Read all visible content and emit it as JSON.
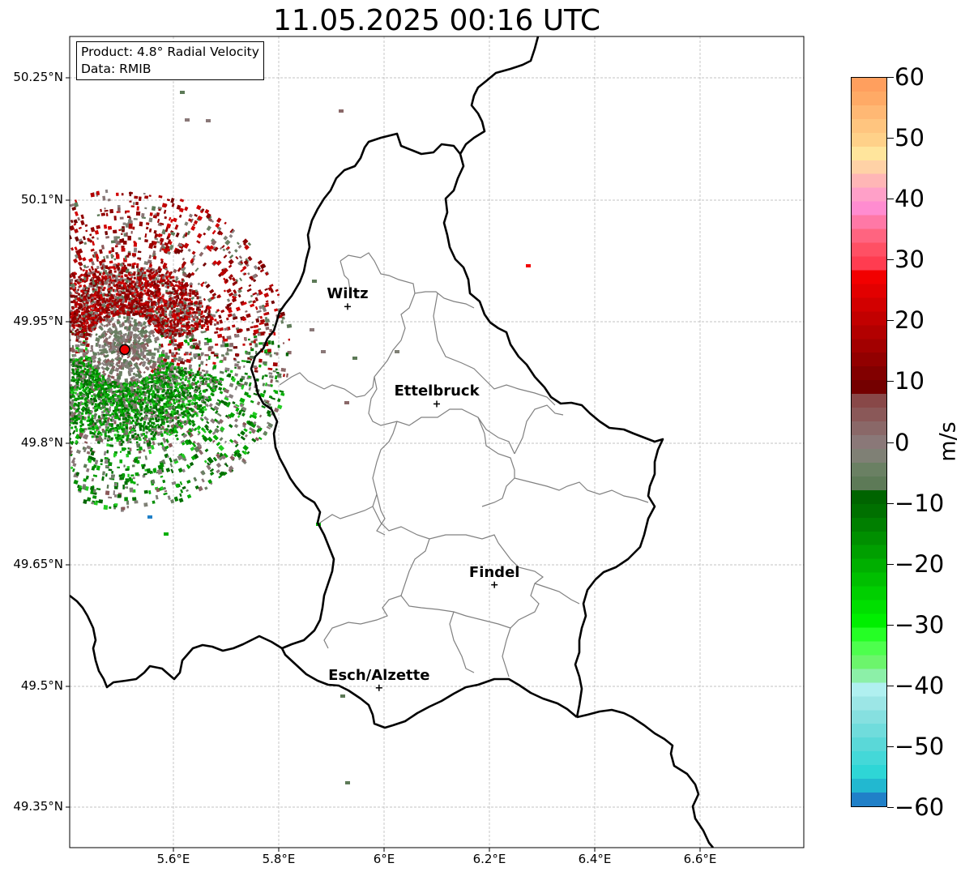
{
  "title": "11.05.2025 00:16 UTC",
  "info_box": {
    "product": "Product: 4.8° Radial Velocity",
    "data": "Data: RMIB"
  },
  "cities": [
    {
      "name": "Wiltz",
      "lon": 5.93,
      "lat": 49.967
    },
    {
      "name": "Ettelbruck",
      "lon": 6.1,
      "lat": 49.847
    },
    {
      "name": "Findel",
      "lon": 6.21,
      "lat": 49.624
    },
    {
      "name": "Esch/Alzette",
      "lon": 5.99,
      "lat": 49.497
    }
  ],
  "radar_site": {
    "lon": 5.505,
    "lat": 49.914,
    "color": "#ee0000"
  },
  "axes": {
    "lon_range": [
      5.4,
      6.8
    ],
    "lat_range": [
      49.3,
      50.3
    ],
    "lat_ticks": [
      "50.25°N",
      "50.1°N",
      "49.95°N",
      "49.8°N",
      "49.65°N",
      "49.5°N",
      "49.35°N"
    ],
    "lon_ticks": [
      "5.6°E",
      "5.8°E",
      "6°E",
      "6.2°E",
      "6.4°E",
      "6.6°E"
    ],
    "grid": true
  },
  "colorbar": {
    "unit": "m/s",
    "min": -60,
    "max": 60,
    "tick_labels": [
      "60",
      "50",
      "40",
      "30",
      "20",
      "10",
      "0",
      "−10",
      "−20",
      "−30",
      "−40",
      "−50",
      "−60"
    ],
    "colors_top_to_bottom": [
      "#ff9f5e",
      "#ffaa66",
      "#ffb874",
      "#ffc57f",
      "#ffd189",
      "#ffe59c",
      "#ffd2a6",
      "#ffb6b6",
      "#ffa0c8",
      "#ff8cd0",
      "#ff78a6",
      "#ff6480",
      "#ff5064",
      "#ff3c50",
      "#f20000",
      "#e20000",
      "#d20000",
      "#c20000",
      "#b20000",
      "#a20000",
      "#920000",
      "#820000",
      "#740000",
      "#884848",
      "#8a5858",
      "#8a6868",
      "#8a7878",
      "#7f8075",
      "#6a8063",
      "#5d7a57",
      "#006400",
      "#007000",
      "#007f00",
      "#008f00",
      "#009f00",
      "#00af00",
      "#00bf00",
      "#00cf00",
      "#00df00",
      "#00ef00",
      "#25ff25",
      "#4dff4d",
      "#6cf56c",
      "#8cf0a8",
      "#b0f0f0",
      "#9ce6e6",
      "#86e0e0",
      "#70dcdc",
      "#5ad8d8",
      "#44d8d8",
      "#2ed6d6",
      "#22b8d0",
      "#2080c8"
    ]
  }
}
